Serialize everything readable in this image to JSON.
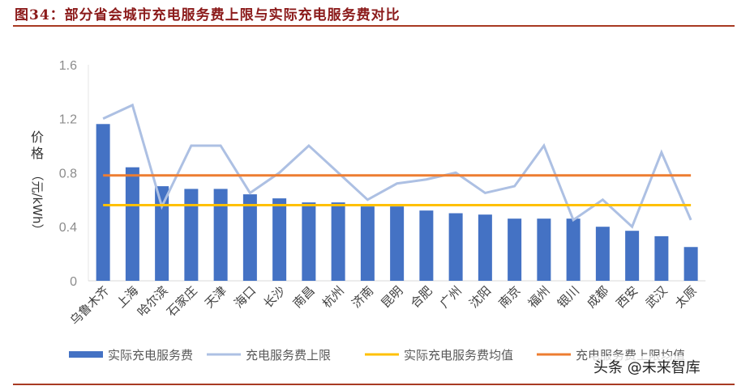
{
  "title": "图34：部分省会城市充电服务费上限与实际充电服务费对比",
  "watermark": "头条 @未来智库",
  "colors": {
    "bar": "#4472c4",
    "limit_line": "#adc0e3",
    "actual_avg": "#ffc000",
    "limit_avg": "#ed7d31",
    "title": "#8b1a1a",
    "rule": "#a83a22"
  },
  "chart_data": {
    "type": "bar",
    "title": "部分省会城市充电服务费上限与实际充电服务费对比",
    "xlabel": "",
    "ylabel": "价格（元/kWh）",
    "ylim": [
      0,
      1.6
    ],
    "yticks": [
      0,
      0.4,
      0.8,
      1.2,
      1.6
    ],
    "ytick_labels": [
      "0",
      "0.4",
      "0.8",
      "1.2",
      "1.6"
    ],
    "grid": false,
    "legend_position": "bottom",
    "categories": [
      "乌鲁木齐",
      "上海",
      "哈尔滨",
      "石家庄",
      "天津",
      "海口",
      "长沙",
      "南昌",
      "杭州",
      "济南",
      "昆明",
      "合肥",
      "广州",
      "沈阳",
      "南京",
      "福州",
      "银川",
      "成都",
      "西安",
      "武汉",
      "太原"
    ],
    "series": [
      {
        "name": "实际充电服务费",
        "type": "bar",
        "values": [
          1.16,
          0.84,
          0.7,
          0.68,
          0.68,
          0.64,
          0.61,
          0.58,
          0.58,
          0.55,
          0.55,
          0.52,
          0.5,
          0.49,
          0.46,
          0.46,
          0.46,
          0.4,
          0.37,
          0.33,
          0.25
        ]
      },
      {
        "name": "充电服务费上限",
        "type": "line",
        "values": [
          1.2,
          1.3,
          0.55,
          1.0,
          1.0,
          0.65,
          0.8,
          1.0,
          0.8,
          0.6,
          0.72,
          0.75,
          0.8,
          0.65,
          0.7,
          1.0,
          0.45,
          0.6,
          0.4,
          0.95,
          0.45
        ]
      },
      {
        "name": "实际充电服务费均值",
        "type": "line",
        "values": [
          0.56,
          0.56,
          0.56,
          0.56,
          0.56,
          0.56,
          0.56,
          0.56,
          0.56,
          0.56,
          0.56,
          0.56,
          0.56,
          0.56,
          0.56,
          0.56,
          0.56,
          0.56,
          0.56,
          0.56,
          0.56
        ]
      },
      {
        "name": "充电服务费上限均值",
        "type": "line",
        "values": [
          0.78,
          0.78,
          0.78,
          0.78,
          0.78,
          0.78,
          0.78,
          0.78,
          0.78,
          0.78,
          0.78,
          0.78,
          0.78,
          0.78,
          0.78,
          0.78,
          0.78,
          0.78,
          0.78,
          0.78,
          0.78
        ]
      }
    ]
  },
  "legend": [
    {
      "label": "实际充电服务费",
      "kind": "bar"
    },
    {
      "label": "充电服务费上限",
      "kind": "line"
    },
    {
      "label": "实际充电服务费均值",
      "kind": "line"
    },
    {
      "label": "充电服务费上限均值",
      "kind": "line"
    }
  ],
  "ylabel_parts": [
    "价",
    "格",
    "（元/kWh）"
  ]
}
